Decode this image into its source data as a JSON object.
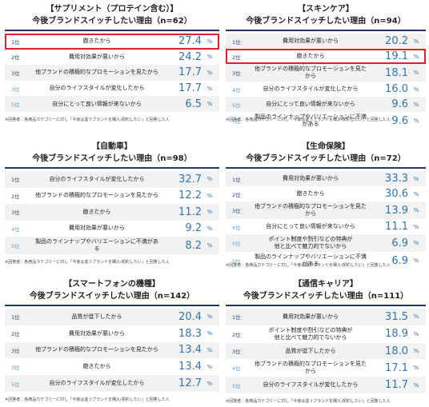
{
  "unit": "%",
  "footnote": "※回答者：各商品カテゴリーに対し「今後は違うブランドを購入・契約したい」と回答した人",
  "panels": [
    {
      "title": "【サプリメント（プロテイン含む）】",
      "subtitle": "今後ブランドスイッチしたい理由（n=62）",
      "highlight": 0,
      "rows": [
        {
          "rank": "1位",
          "reason": "飽きたから",
          "value": "27.4"
        },
        {
          "rank": "2位",
          "reason": "費用対効果が悪いから",
          "value": "24.2"
        },
        {
          "rank": "3位",
          "reason": "他ブランドの積極的なプロモーションを見たから",
          "value": "17.7"
        },
        {
          "rank": "3位",
          "reason": "自分のライフスタイルが変化したから",
          "value": "17.7"
        },
        {
          "rank": "5位",
          "reason": "自分にとって良い情報が来ないから",
          "value": "6.5"
        }
      ]
    },
    {
      "title": "【スキンケア】",
      "subtitle": "今後ブランドスイッチしたい理由（n=94）",
      "highlight": 1,
      "rows": [
        {
          "rank": "1位",
          "reason": "費用対効果が悪いから",
          "value": "20.2"
        },
        {
          "rank": "2位",
          "reason": "飽きたから",
          "value": "19.1"
        },
        {
          "rank": "3位",
          "reason": "他ブランドの積極的なプロモーションを見たから",
          "value": "18.1"
        },
        {
          "rank": "4位",
          "reason": "自分のライフスタイルが変化したから",
          "value": "16.0"
        },
        {
          "rank": "5位",
          "reason": "自分にとって良い情報が来ないから",
          "value": "9.6"
        },
        {
          "rank": "5位",
          "reason": "製品のラインナップやバリエーションに不満がある",
          "value": "9.6"
        }
      ]
    },
    {
      "title": "【自動車】",
      "subtitle": "今後ブランドスイッチしたい理由（n=98）",
      "rows": [
        {
          "rank": "1位",
          "reason": "自分のライフスタイルが変化したから",
          "value": "32.7"
        },
        {
          "rank": "2位",
          "reason": "他ブランドの積極的なプロモーションを見たから",
          "value": "12.2"
        },
        {
          "rank": "3位",
          "reason": "飽きたから",
          "value": "11.2"
        },
        {
          "rank": "4位",
          "reason": "費用対効果が悪いから",
          "value": "9.2"
        },
        {
          "rank": "5位",
          "reason": "製品のラインナップやバリエーションに不満がある",
          "value": "8.2"
        }
      ]
    },
    {
      "title": "【生命保険】",
      "subtitle": "今後ブランドスイッチしたい理由（n=72）",
      "rows": [
        {
          "rank": "1位",
          "reason": "費用対効果が悪いから",
          "value": "33.3"
        },
        {
          "rank": "2位",
          "reason": "飽きたから",
          "value": "30.6"
        },
        {
          "rank": "3位",
          "reason": "他ブランドの積極的なプロモーションを見たから",
          "value": "13.9"
        },
        {
          "rank": "4位",
          "reason": "自分にとって良い情報が来ないから",
          "value": "11.1"
        },
        {
          "rank": "5位",
          "reason": "ポイント制度や割引などの特典が\n他と比べて魅力的でないから",
          "value": "6.9"
        },
        {
          "rank": "5位",
          "reason": "製品のラインナップやバリエーションに不満がある",
          "value": "6.9"
        }
      ]
    },
    {
      "title": "【スマートフォンの機種】",
      "subtitle": "今後ブランドスイッチしたい理由（n=142）",
      "rows": [
        {
          "rank": "1位",
          "reason": "品質が低下したから",
          "value": "20.4"
        },
        {
          "rank": "2位",
          "reason": "費用対効果が悪いから",
          "value": "18.3"
        },
        {
          "rank": "3位",
          "reason": "他ブランドの積極的なプロモーションを見たから",
          "value": "13.4"
        },
        {
          "rank": "3位",
          "reason": "飽きたから",
          "value": "13.4"
        },
        {
          "rank": "5位",
          "reason": "自分のライフスタイルが変化したから",
          "value": "12.7"
        }
      ]
    },
    {
      "title": "【通信キャリア】",
      "subtitle": "今後ブランドスイッチしたい理由（n=111）",
      "rows": [
        {
          "rank": "1位",
          "reason": "費用対効果が悪いから",
          "value": "31.5"
        },
        {
          "rank": "2位",
          "reason": "ポイント制度や割引などの特典が\n他と比べて魅力的でないから",
          "value": "18.9"
        },
        {
          "rank": "3位",
          "reason": "品質が低下したから",
          "value": "18.0"
        },
        {
          "rank": "4位",
          "reason": "他ブランドの積極的なプロモーションを見たから",
          "value": "17.1"
        },
        {
          "rank": "5位",
          "reason": "自分のライフスタイルが変化したから",
          "value": "11.7"
        }
      ]
    }
  ]
}
